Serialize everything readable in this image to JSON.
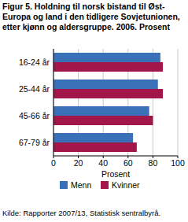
{
  "chart_data": {
    "type": "bar",
    "orientation": "horizontal",
    "title": "Figur 5. Holdning til norsk bistand til Øst-Europa og land i den tidligere Sovjetunionen, etter kjønn og aldersgruppe. 2006. Prosent",
    "categories": [
      "16-24 år",
      "25-44 år",
      "45-66 år",
      "67-79 år"
    ],
    "series": [
      {
        "name": "Menn",
        "color": "#3a70b8",
        "values": [
          86,
          84,
          77,
          64
        ]
      },
      {
        "name": "Kvinner",
        "color": "#a3164a",
        "values": [
          88,
          88,
          80,
          67
        ]
      }
    ],
    "x_label": "Prosent",
    "source": "Kilde: Rapporter 2007/13, Statistisk sentralbyrå.",
    "xlim": [
      0,
      100
    ],
    "xticks": [
      0,
      20,
      40,
      60,
      80,
      100
    ],
    "grid": true,
    "legend": "bottom"
  }
}
